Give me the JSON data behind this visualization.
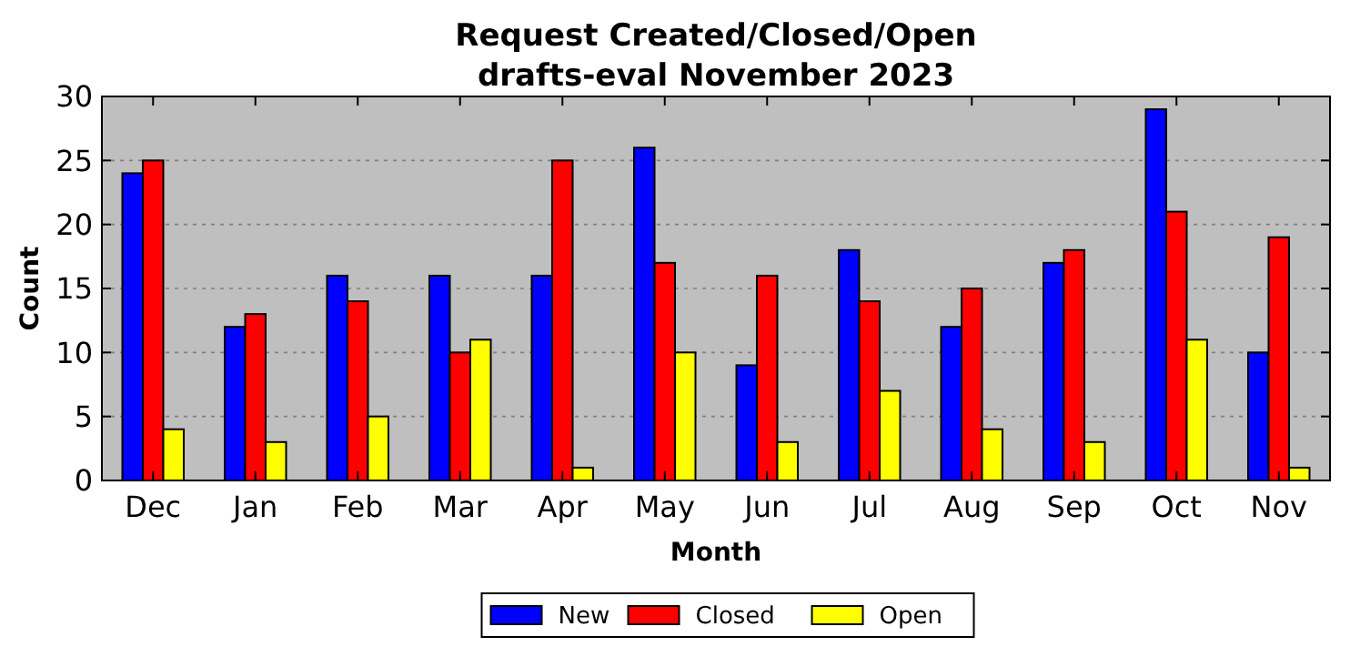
{
  "chart_data": {
    "type": "bar",
    "title": "Request Created/Closed/Open\ndrafts-eval November 2023",
    "xlabel": "Month",
    "ylabel": "Count",
    "categories": [
      "Dec",
      "Jan",
      "Feb",
      "Mar",
      "Apr",
      "May",
      "Jun",
      "Jul",
      "Aug",
      "Sep",
      "Oct",
      "Nov"
    ],
    "series": [
      {
        "name": "New",
        "color": "#0000ff",
        "values": [
          24,
          12,
          16,
          16,
          16,
          26,
          9,
          18,
          12,
          17,
          29,
          10
        ]
      },
      {
        "name": "Closed",
        "color": "#ff0000",
        "values": [
          25,
          13,
          14,
          10,
          25,
          17,
          16,
          14,
          15,
          18,
          21,
          19
        ]
      },
      {
        "name": "Open",
        "color": "#ffff00",
        "values": [
          4,
          3,
          5,
          11,
          1,
          10,
          3,
          7,
          4,
          3,
          11,
          1
        ]
      }
    ],
    "ylim": [
      0,
      30
    ],
    "yticks": [
      0,
      5,
      10,
      15,
      20,
      25,
      30
    ],
    "grid": "y",
    "legend": "bottom"
  }
}
